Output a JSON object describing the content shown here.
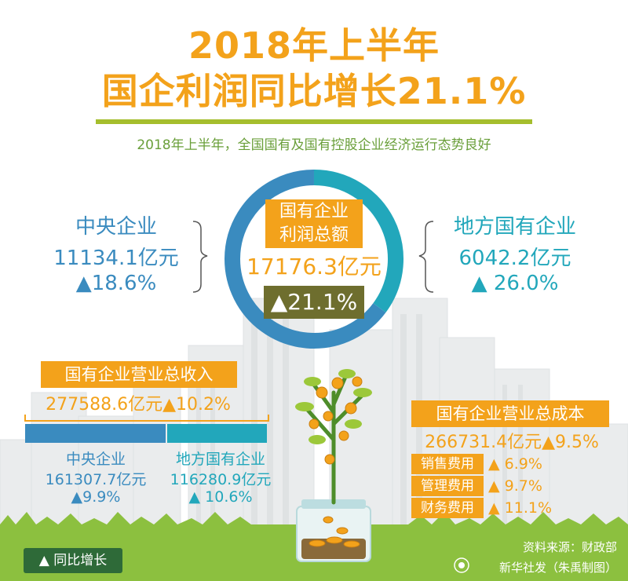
{
  "title_line1": "2018年上半年",
  "title_line2": "国企利润同比增长21.1%",
  "subtitle": "2018年上半年，全国国有及国有控股企业经济运行态势良好",
  "profit": {
    "label": "国有企业\n利润总额",
    "total": "17176.3亿元",
    "growth": "▲21.1%",
    "central": {
      "label": "中央企业",
      "value": "11134.1亿元",
      "growth": "▲18.6%"
    },
    "local": {
      "label": "地方国有企业",
      "value": "6042.2亿元",
      "growth": "▲ 26.0%"
    }
  },
  "revenue": {
    "title": "国有企业营业总收入",
    "total": "277588.6亿元▲10.2%",
    "central": {
      "label": "中央企业",
      "value": "161307.7亿元",
      "growth": "▲9.9%"
    },
    "local": {
      "label": "地方国有企业",
      "value": "116280.9亿元",
      "growth": "▲ 10.6%"
    }
  },
  "cost": {
    "title": "国有企业营业总成本",
    "total": "266731.4亿元▲9.5%",
    "items": [
      {
        "name": "销售费用",
        "growth": "▲ 6.9%"
      },
      {
        "name": "管理费用",
        "growth": "▲ 9.7%"
      },
      {
        "name": "财务费用",
        "growth": "▲ 11.1%"
      }
    ]
  },
  "legend": "▲ 同比增长",
  "source": "资料来源：财政部",
  "credit": "新华社发（朱禹制图）",
  "colors": {
    "orange": "#f3a21b",
    "blue": "#3a8bbf",
    "teal": "#22a7bb",
    "olive": "#6e6e2e",
    "green": "#a5be2d"
  },
  "chart_data": [
    {
      "type": "pie",
      "title": "国有企业利润总额",
      "values": [
        11134.1,
        6042.2
      ],
      "labels": [
        "中央企业",
        "地方国有企业"
      ]
    },
    {
      "type": "bar",
      "title": "国有企业营业总收入",
      "categories": [
        "中央企业",
        "地方国有企业"
      ],
      "values": [
        161307.7,
        116280.9
      ]
    }
  ]
}
